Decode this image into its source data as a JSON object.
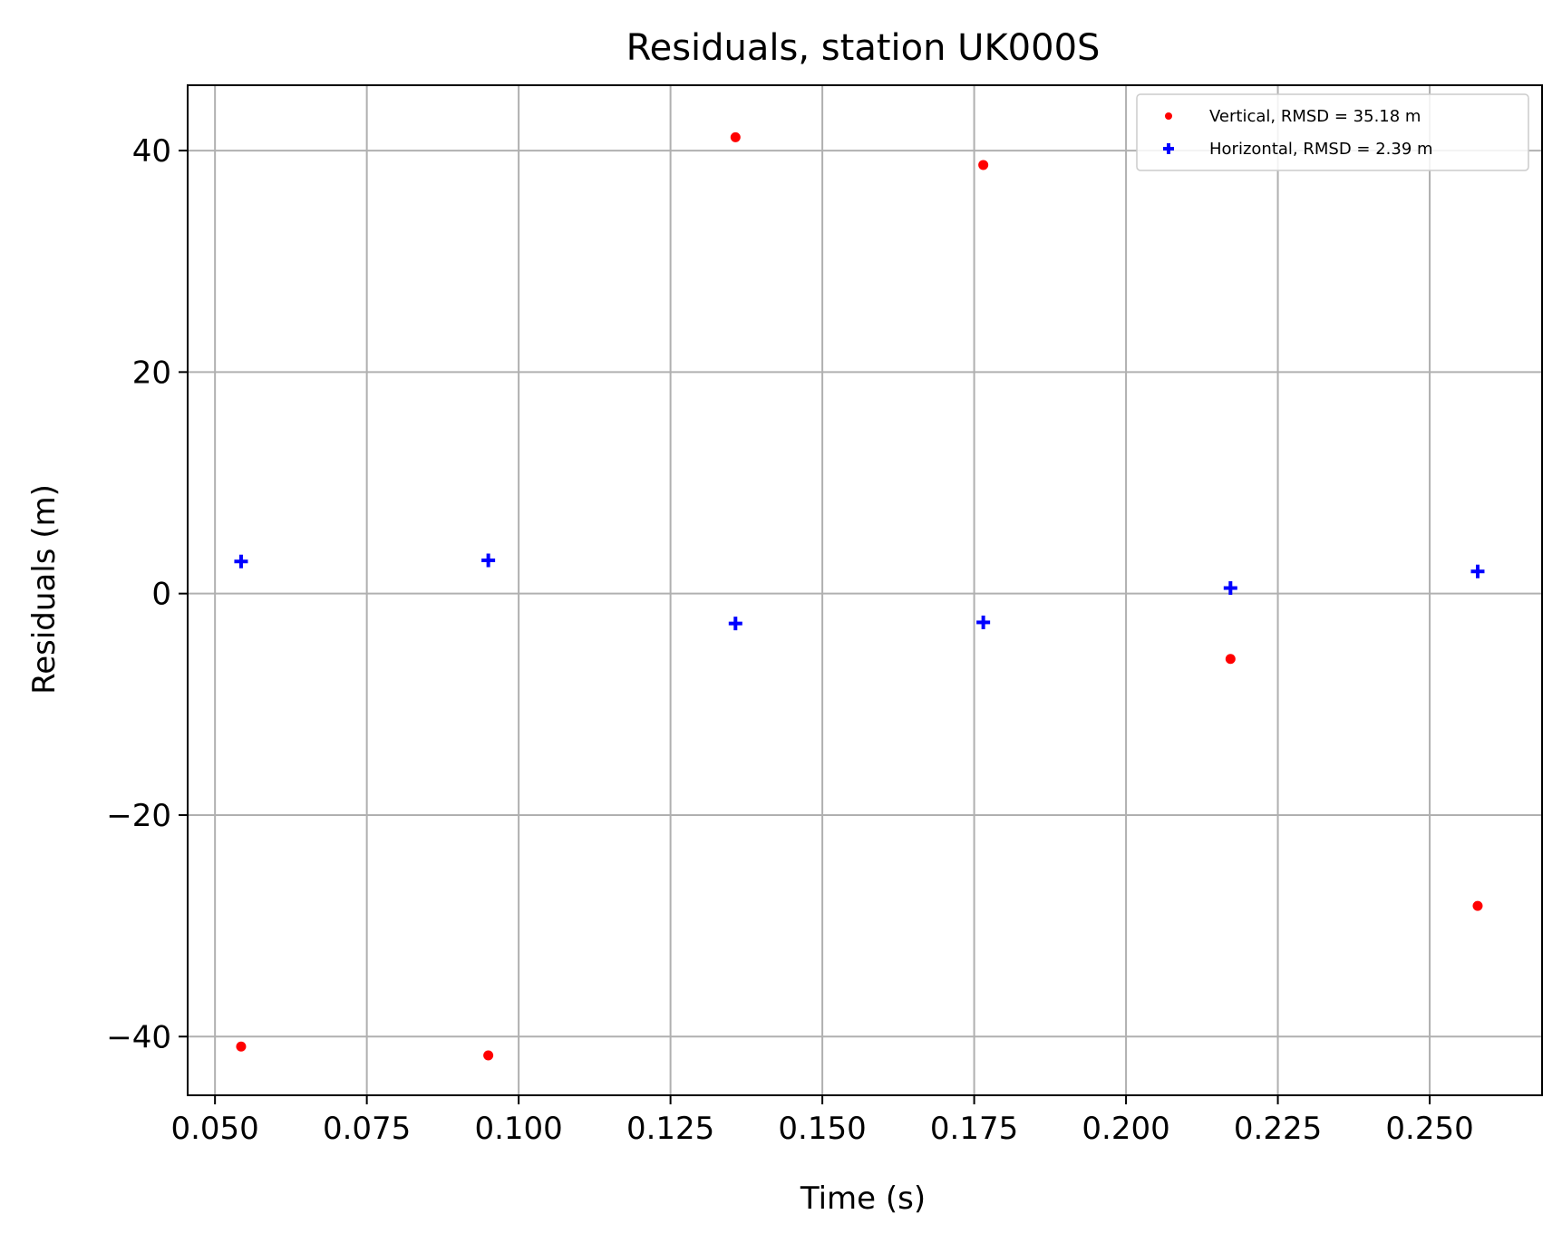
{
  "chart_data": {
    "type": "scatter",
    "title": "Residuals, station UK000S",
    "xlabel": "Time (s)",
    "ylabel": "Residuals (m)",
    "xlim": [
      0.0455,
      0.2685
    ],
    "ylim": [
      -45.3,
      45.9
    ],
    "xticks": [
      0.05,
      0.075,
      0.1,
      0.125,
      0.15,
      0.175,
      0.2,
      0.225,
      0.25
    ],
    "xtick_labels": [
      "0.050",
      "0.075",
      "0.100",
      "0.125",
      "0.150",
      "0.175",
      "0.200",
      "0.225",
      "0.250"
    ],
    "yticks": [
      -40,
      -20,
      0,
      20,
      40
    ],
    "ytick_labels": [
      "−40",
      "−20",
      "0",
      "20",
      "40"
    ],
    "grid": true,
    "legend_position": "top-right",
    "series": [
      {
        "name": "Vertical, RMSD = 35.18 m",
        "marker": "dot",
        "color": "#ff0000",
        "x": [
          0.0543,
          0.095,
          0.1357,
          0.1765,
          0.2172,
          0.2579
        ],
        "y": [
          -40.9,
          -41.7,
          41.2,
          38.7,
          -5.9,
          -28.2
        ]
      },
      {
        "name": "Horizontal, RMSD = 2.39 m",
        "marker": "plus",
        "color": "#0000ff",
        "x": [
          0.0543,
          0.095,
          0.1357,
          0.1765,
          0.2172,
          0.2579
        ],
        "y": [
          2.9,
          3.0,
          -2.7,
          -2.6,
          0.5,
          2.0
        ]
      }
    ]
  }
}
